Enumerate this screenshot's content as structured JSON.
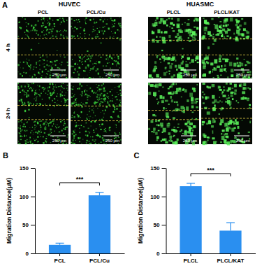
{
  "panel_a": {
    "label": "A",
    "groups": [
      {
        "name": "HUVEC",
        "columns": [
          "PCL",
          "PCL/Cu"
        ]
      },
      {
        "name": "HUASMC",
        "columns": [
          "PLCL",
          "PLCL/KAT"
        ]
      }
    ],
    "rows": [
      "4 h",
      "24 h"
    ],
    "scale_bar": "250 μm"
  },
  "chart_data": [
    {
      "type": "bar",
      "title": "B",
      "y_label": "Migration Distance(μM)",
      "categories": [
        "PCL",
        "PCL/Cu"
      ],
      "values": [
        15,
        102
      ],
      "errors": [
        3,
        5
      ],
      "color": "#2a8ff0",
      "ylim": [
        0,
        150
      ],
      "yticks": [
        0,
        50,
        100,
        150
      ],
      "grid": false,
      "annotations": [
        "***"
      ]
    },
    {
      "type": "bar",
      "title": "C",
      "y_label": "Migration Distance(μM)",
      "categories": [
        "PLCL",
        "PLCL/KAT"
      ],
      "values": [
        118,
        40
      ],
      "errors": [
        5,
        14
      ],
      "color": "#2a8ff0",
      "ylim": [
        0,
        150
      ],
      "yticks": [
        0,
        50,
        100,
        150
      ],
      "grid": false,
      "annotations": [
        "***"
      ]
    }
  ]
}
